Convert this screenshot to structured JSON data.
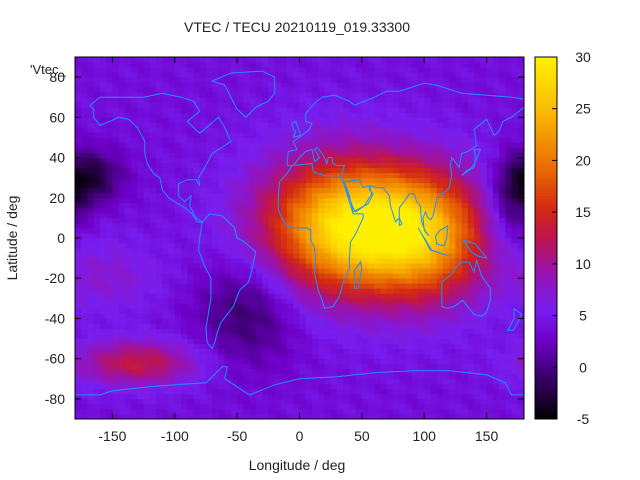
{
  "chart_data": {
    "type": "heatmap",
    "title": "VTEC / TECU 20210119_019.33300",
    "xlabel": "Longitude / deg",
    "ylabel": "Latitude / deg",
    "legend_entry": "'Vtec_",
    "xlim": [
      -180,
      180
    ],
    "ylim": [
      -90,
      90
    ],
    "x_ticks": [
      -150,
      -100,
      -50,
      0,
      50,
      100,
      150
    ],
    "y_ticks": [
      -80,
      -60,
      -40,
      -20,
      0,
      20,
      40,
      60,
      80
    ],
    "colorbar": {
      "range": [
        -5,
        30
      ],
      "ticks": [
        -5,
        0,
        5,
        10,
        15,
        20,
        25,
        30
      ],
      "palette": "black-purple-red-orange-yellow"
    },
    "grid_resolution": {
      "lon_step_deg": 5,
      "lat_step_deg": 2.5
    },
    "field_features": [
      {
        "lon": 60,
        "lat": 5,
        "vtec": 29,
        "spread_lon": 55,
        "spread_lat": 22
      },
      {
        "lon": 105,
        "lat": -5,
        "vtec": 10,
        "spread_lon": 30,
        "spread_lat": 22
      },
      {
        "lon": 20,
        "lat": 10,
        "vtec": 8,
        "spread_lon": 40,
        "spread_lat": 30
      },
      {
        "lon": -130,
        "lat": -62,
        "vtec": 13,
        "spread_lon": 35,
        "spread_lat": 8
      },
      {
        "lon": -150,
        "lat": -20,
        "vtec": 7,
        "spread_lon": 30,
        "spread_lat": 12
      },
      {
        "lon": 130,
        "lat": -45,
        "vtec": 4,
        "spread_lon": 40,
        "spread_lat": 15
      },
      {
        "lon": -170,
        "lat": 30,
        "vtec": -4,
        "spread_lon": 20,
        "spread_lat": 10
      },
      {
        "lon": 170,
        "lat": 15,
        "vtec": -3,
        "spread_lon": 15,
        "spread_lat": 15
      },
      {
        "lon": -40,
        "lat": -35,
        "vtec": -2,
        "spread_lon": 30,
        "spread_lat": 20
      }
    ],
    "base_vtec": 4,
    "coastline_color": "#1e90ff"
  }
}
